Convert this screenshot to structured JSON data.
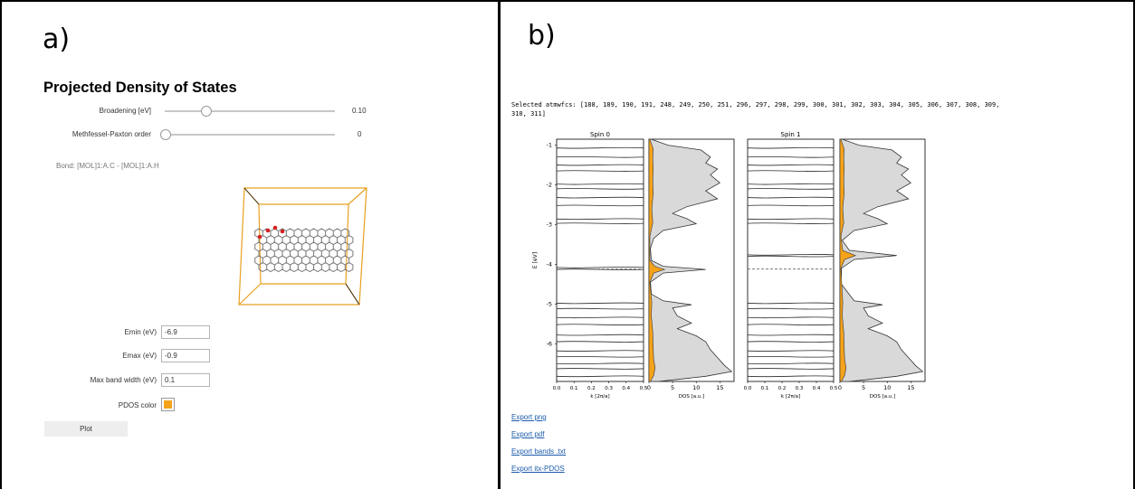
{
  "panels": {
    "left_letter": "a)",
    "right_letter": "b)"
  },
  "app": {
    "title": "Projected Density of States"
  },
  "sliders": [
    {
      "label": "Broadening [eV]",
      "value": "0.10",
      "fraction": 0.24
    },
    {
      "label": "Methfessel-Paxton order",
      "value": "0",
      "fraction": 0.0
    }
  ],
  "bond": "Bond: [MOL]1:A.C - [MOL]1:A.H",
  "fields": [
    {
      "label": "Emin (eV)",
      "value": "-6.9"
    },
    {
      "label": "Emax (eV)",
      "value": "-0.9"
    },
    {
      "label": "Max band width (eV)",
      "value": "0.1"
    }
  ],
  "pdos_color": {
    "label": "PDOS color",
    "value": "#f5a31a"
  },
  "plot_button": "Plot",
  "selected": "Selected atmwfcs: [188, 189, 190, 191, 248, 249, 250, 251, 296, 297, 298, 299, 300, 301, 302, 303, 304, 305, 306, 307, 308, 309,\n310, 311]",
  "exports": [
    "Export png",
    "Export pdf",
    "Export bands .txt",
    "Export itx-PDOS"
  ],
  "colors": {
    "pdos": "#f5a31a",
    "dos_fill": "#d9d9d9",
    "link": "#1a5aab"
  },
  "chart_data": [
    {
      "type": "line",
      "title": "Spin 0",
      "xlabel": "k [2π/a]",
      "ylabel": "E [eV]",
      "xlim": [
        0.0,
        0.5
      ],
      "ylim": [
        -6.95,
        -0.85
      ],
      "xticks": [
        "0.0",
        "0.1",
        "0.2",
        "0.3",
        "0.4",
        "0.5"
      ],
      "yticks": [
        "-1",
        "-2",
        "-3",
        "-4",
        "-5",
        "-6"
      ],
      "fermi_level": -4.12,
      "bands": [
        -1.07,
        -1.3,
        -1.5,
        -1.65,
        -1.98,
        -2.1,
        -2.32,
        -2.52,
        -2.86,
        -2.97,
        -4.08,
        -4.13,
        -4.98,
        -5.12,
        -5.34,
        -5.52,
        -5.78,
        -5.95,
        -6.18,
        -6.33,
        -6.5,
        -6.63,
        -6.82
      ],
      "dos": {
        "xlabel": "DOS [a.u.]",
        "xlim": [
          0,
          18
        ],
        "xticks": [
          "0",
          "5",
          "10",
          "15"
        ],
        "total": [
          [
            -0.85,
            0.5
          ],
          [
            -1.0,
            4
          ],
          [
            -1.12,
            11
          ],
          [
            -1.3,
            13
          ],
          [
            -1.45,
            12
          ],
          [
            -1.6,
            14.5
          ],
          [
            -1.75,
            13
          ],
          [
            -1.95,
            15
          ],
          [
            -2.15,
            12
          ],
          [
            -2.35,
            14.5
          ],
          [
            -2.55,
            8
          ],
          [
            -2.72,
            5
          ],
          [
            -2.85,
            8
          ],
          [
            -2.98,
            10
          ],
          [
            -3.15,
            3
          ],
          [
            -3.35,
            1
          ],
          [
            -3.6,
            0.3
          ],
          [
            -3.9,
            0.5
          ],
          [
            -4.05,
            3
          ],
          [
            -4.13,
            12
          ],
          [
            -4.22,
            3
          ],
          [
            -4.45,
            0.3
          ],
          [
            -4.75,
            0.5
          ],
          [
            -4.92,
            3
          ],
          [
            -5.02,
            9
          ],
          [
            -5.1,
            5
          ],
          [
            -5.3,
            6
          ],
          [
            -5.48,
            9
          ],
          [
            -5.62,
            6
          ],
          [
            -5.8,
            10
          ],
          [
            -5.95,
            12
          ],
          [
            -6.15,
            13
          ],
          [
            -6.35,
            14.5
          ],
          [
            -6.55,
            16
          ],
          [
            -6.7,
            17.5
          ],
          [
            -6.82,
            12
          ],
          [
            -6.9,
            6
          ],
          [
            -6.95,
            2
          ]
        ],
        "pdos": [
          [
            -0.85,
            0.2
          ],
          [
            -1.1,
            0.9
          ],
          [
            -1.3,
            0.8
          ],
          [
            -1.6,
            0.9
          ],
          [
            -1.9,
            0.8
          ],
          [
            -2.2,
            0.9
          ],
          [
            -2.6,
            0.6
          ],
          [
            -2.95,
            0.8
          ],
          [
            -3.3,
            0.2
          ],
          [
            -3.9,
            0.2
          ],
          [
            -4.05,
            1.2
          ],
          [
            -4.13,
            3.3
          ],
          [
            -4.22,
            1.0
          ],
          [
            -4.45,
            0.2
          ],
          [
            -4.95,
            0.6
          ],
          [
            -5.3,
            0.5
          ],
          [
            -5.7,
            0.8
          ],
          [
            -6.1,
            0.9
          ],
          [
            -6.4,
            1.0
          ],
          [
            -6.6,
            1.3
          ],
          [
            -6.8,
            1.0
          ],
          [
            -6.95,
            0.3
          ]
        ]
      }
    },
    {
      "type": "line",
      "title": "Spin 1",
      "xlabel": "k [2π/a]",
      "ylabel": "",
      "xlim": [
        0.0,
        0.5
      ],
      "ylim": [
        -6.95,
        -0.85
      ],
      "xticks": [
        "0.0",
        "0.1",
        "0.2",
        "0.3",
        "0.4",
        "0.5"
      ],
      "yticks": [],
      "fermi_level": -4.12,
      "bands": [
        -1.07,
        -1.3,
        -1.5,
        -1.65,
        -1.98,
        -2.1,
        -2.32,
        -2.52,
        -2.86,
        -2.97,
        -3.76,
        -3.8,
        -4.98,
        -5.12,
        -5.34,
        -5.52,
        -5.78,
        -5.95,
        -6.18,
        -6.33,
        -6.5,
        -6.63,
        -6.82
      ],
      "dos": {
        "xlabel": "DOS [a.u.]",
        "xlim": [
          0,
          18
        ],
        "xticks": [
          "0",
          "5",
          "10",
          "15"
        ],
        "total": [
          [
            -0.85,
            0.5
          ],
          [
            -1.0,
            4
          ],
          [
            -1.12,
            11
          ],
          [
            -1.3,
            13
          ],
          [
            -1.45,
            12
          ],
          [
            -1.6,
            14.5
          ],
          [
            -1.75,
            13
          ],
          [
            -1.95,
            15
          ],
          [
            -2.15,
            12
          ],
          [
            -2.35,
            14.5
          ],
          [
            -2.55,
            8
          ],
          [
            -2.72,
            5
          ],
          [
            -2.85,
            8
          ],
          [
            -2.98,
            10
          ],
          [
            -3.15,
            3
          ],
          [
            -3.4,
            0.5
          ],
          [
            -3.65,
            2
          ],
          [
            -3.78,
            12
          ],
          [
            -3.88,
            3
          ],
          [
            -4.1,
            0.3
          ],
          [
            -4.5,
            0.3
          ],
          [
            -4.92,
            3
          ],
          [
            -5.02,
            9
          ],
          [
            -5.1,
            5
          ],
          [
            -5.3,
            6
          ],
          [
            -5.48,
            9
          ],
          [
            -5.62,
            6
          ],
          [
            -5.8,
            10
          ],
          [
            -5.95,
            12
          ],
          [
            -6.15,
            13
          ],
          [
            -6.35,
            14.5
          ],
          [
            -6.55,
            16
          ],
          [
            -6.7,
            17.5
          ],
          [
            -6.82,
            12
          ],
          [
            -6.9,
            6
          ],
          [
            -6.95,
            2
          ]
        ],
        "pdos": [
          [
            -0.85,
            0.2
          ],
          [
            -1.1,
            0.9
          ],
          [
            -1.3,
            0.8
          ],
          [
            -1.6,
            0.9
          ],
          [
            -1.9,
            0.8
          ],
          [
            -2.2,
            0.9
          ],
          [
            -2.6,
            0.6
          ],
          [
            -2.95,
            0.8
          ],
          [
            -3.3,
            0.2
          ],
          [
            -3.65,
            0.6
          ],
          [
            -3.78,
            3.3
          ],
          [
            -3.88,
            1.0
          ],
          [
            -4.1,
            0.2
          ],
          [
            -4.95,
            0.6
          ],
          [
            -5.3,
            0.5
          ],
          [
            -5.7,
            0.8
          ],
          [
            -6.1,
            0.9
          ],
          [
            -6.4,
            1.0
          ],
          [
            -6.6,
            1.3
          ],
          [
            -6.8,
            1.0
          ],
          [
            -6.95,
            0.3
          ]
        ]
      }
    }
  ]
}
